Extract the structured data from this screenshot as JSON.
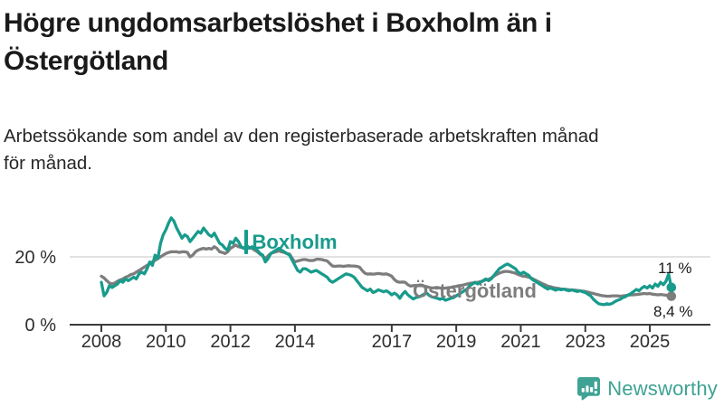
{
  "header": {
    "title_lines": [
      "Högre ungdomsarbetslöshet i Boxholm än i",
      "Östergötland"
    ],
    "subtitle_lines": [
      "Arbetssökande som andel av den registerbaserade arbetskraften månad",
      "för månad."
    ]
  },
  "footer": {
    "brand": "Newsworthy",
    "brand_color": "#3EA294",
    "logo_icon": "bar-chart-speech-bubble-icon"
  },
  "colors": {
    "boxholm_teal": "#189B8C",
    "ostergotland_gray": "#7D7D7D",
    "gridline": "#d9d9d9",
    "axis": "#3b3b3b",
    "title_text": "#1a1a1a"
  },
  "chart_data": {
    "type": "line",
    "title": "Högre ungdomsarbetslöshet i Boxholm än i Östergötland",
    "subtitle": "Arbetssökande som andel av den registerbaserade arbetskraften månad för månad.",
    "unit": "%",
    "x_start_year": 2008,
    "points_per_month": 1,
    "x_axis_ticks": [
      {
        "year": 2008,
        "label": "2008"
      },
      {
        "year": 2010,
        "label": "2010"
      },
      {
        "year": 2012,
        "label": "2012"
      },
      {
        "year": 2014,
        "label": "2014"
      },
      {
        "year": 2017,
        "label": "2017"
      },
      {
        "year": 2019,
        "label": "2019"
      },
      {
        "year": 2021,
        "label": "2021"
      },
      {
        "year": 2023,
        "label": "2023"
      },
      {
        "year": 2025,
        "label": "2025"
      }
    ],
    "y_axis_ticks": [
      {
        "value": 20,
        "label": "20 %"
      },
      {
        "value": 0,
        "label": "0 %"
      }
    ],
    "ylim": [
      0,
      35
    ],
    "grid": "single horizontal gridline at 20 %, baseline axis at 0 %",
    "legend_position": "inline labels on lines, value labels at line ends",
    "series": [
      {
        "name": "Boxholm",
        "color": "#189B8C",
        "end_label": "11 %",
        "end_value": 11,
        "values": [
          12.5,
          8.5,
          9.5,
          11.5,
          11.0,
          11.5,
          12.0,
          13.0,
          12.5,
          13.5,
          13.0,
          13.5,
          14.0,
          13.5,
          15.0,
          15.5,
          15.0,
          16.5,
          18.5,
          17.5,
          20.5,
          19.5,
          24.0,
          26.5,
          28.0,
          30.0,
          31.5,
          30.5,
          28.5,
          27.0,
          25.5,
          26.5,
          26.0,
          24.5,
          25.5,
          26.5,
          27.5,
          27.0,
          28.5,
          27.5,
          26.5,
          26.0,
          27.0,
          25.5,
          24.0,
          23.5,
          22.5,
          22.0,
          24.5,
          24.0,
          25.5,
          24.5,
          23.0,
          22.5,
          23.5,
          22.5,
          23.0,
          22.5,
          22.0,
          21.0,
          20.5,
          18.5,
          19.5,
          21.0,
          21.5,
          22.0,
          22.5,
          22.0,
          21.5,
          21.0,
          20.5,
          19.0,
          17.5,
          16.0,
          15.5,
          16.5,
          16.5,
          16.0,
          15.5,
          15.8,
          16.0,
          15.5,
          15.0,
          14.5,
          14.0,
          13.0,
          12.5,
          13.0,
          13.5,
          14.0,
          14.5,
          15.0,
          14.8,
          14.5,
          14.0,
          13.0,
          12.0,
          11.0,
          10.5,
          10.0,
          10.5,
          9.5,
          9.8,
          10.3,
          10.0,
          9.7,
          10.0,
          9.5,
          8.8,
          9.3,
          8.8,
          7.8,
          9.0,
          9.8,
          8.8,
          8.2,
          7.6,
          8.0,
          8.2,
          8.5,
          9.0,
          9.3,
          8.6,
          8.2,
          8.0,
          7.8,
          7.5,
          7.8,
          7.2,
          7.5,
          7.8,
          8.0,
          8.5,
          9.0,
          9.5,
          10.0,
          10.5,
          11.5,
          12.0,
          12.5,
          12.0,
          12.5,
          13.0,
          13.5,
          13.0,
          13.5,
          14.5,
          15.5,
          16.5,
          17.0,
          17.5,
          17.9,
          17.5,
          17.0,
          16.5,
          15.5,
          15.0,
          15.5,
          15.0,
          14.5,
          13.5,
          13.0,
          12.5,
          12.0,
          11.5,
          11.0,
          10.5,
          10.8,
          10.5,
          10.2,
          10.5,
          10.3,
          10.5,
          10.2,
          10.0,
          10.3,
          10.0,
          9.8,
          10.0,
          9.7,
          9.5,
          9.0,
          8.5,
          7.5,
          6.8,
          6.2,
          6.0,
          5.9,
          6.2,
          6.0,
          6.3,
          6.8,
          7.2,
          7.5,
          8.0,
          8.3,
          8.8,
          9.2,
          9.8,
          10.4,
          10.0,
          10.8,
          11.3,
          10.8,
          11.5,
          10.8,
          12.0,
          11.3,
          12.5,
          11.8,
          12.8,
          14.9,
          11.0
        ]
      },
      {
        "name": "Östergötland",
        "color": "#7D7D7D",
        "end_label": "8,4 %",
        "end_value": 8.4,
        "values": [
          14.3,
          13.8,
          13.0,
          12.3,
          12.0,
          12.3,
          12.8,
          13.2,
          13.5,
          14.0,
          14.3,
          14.8,
          15.0,
          15.5,
          16.0,
          16.5,
          17.0,
          17.5,
          18.0,
          18.5,
          19.0,
          19.5,
          20.0,
          20.5,
          21.0,
          21.3,
          21.5,
          21.5,
          21.5,
          21.3,
          21.5,
          21.5,
          21.3,
          20.0,
          20.5,
          21.5,
          22.0,
          22.3,
          22.5,
          22.3,
          22.5,
          22.3,
          23.0,
          22.5,
          21.5,
          21.3,
          21.0,
          21.5,
          22.5,
          23.0,
          23.5,
          23.0,
          22.8,
          22.5,
          23.0,
          22.8,
          22.5,
          22.0,
          21.5,
          20.8,
          20.3,
          19.5,
          20.3,
          21.0,
          21.3,
          21.5,
          21.8,
          21.5,
          21.3,
          21.0,
          20.8,
          19.5,
          18.5,
          18.8,
          19.0,
          19.2,
          19.2,
          19.0,
          18.9,
          19.0,
          19.3,
          19.3,
          19.2,
          19.0,
          18.8,
          18.0,
          17.3,
          17.2,
          17.3,
          17.3,
          17.2,
          17.3,
          17.4,
          17.3,
          17.3,
          17.2,
          17.0,
          16.0,
          15.2,
          14.9,
          15.0,
          14.9,
          15.0,
          15.1,
          15.0,
          14.9,
          15.0,
          14.7,
          14.3,
          13.3,
          12.7,
          12.5,
          12.6,
          12.5,
          11.8,
          11.4,
          11.5,
          11.6,
          11.5,
          11.5,
          11.4,
          11.2,
          11.0,
          10.8,
          10.9,
          11.0,
          10.8,
          10.7,
          10.8,
          10.9,
          11.0,
          11.2,
          11.3,
          11.5,
          11.6,
          11.8,
          12.0,
          12.2,
          12.3,
          12.4,
          12.5,
          12.7,
          12.9,
          13.2,
          13.4,
          13.8,
          14.3,
          14.8,
          15.2,
          15.5,
          15.7,
          15.7,
          15.6,
          15.4,
          15.2,
          14.8,
          14.5,
          14.3,
          14.2,
          14.0,
          13.7,
          13.3,
          12.9,
          12.5,
          12.1,
          11.8,
          11.4,
          11.2,
          11.0,
          10.8,
          10.7,
          10.5,
          10.5,
          10.4,
          10.3,
          10.2,
          10.2,
          10.1,
          10.0,
          9.9,
          9.8,
          9.6,
          9.4,
          9.2,
          9.0,
          8.8,
          8.6,
          8.5,
          8.4,
          8.4,
          8.5,
          8.5,
          8.5,
          8.4,
          8.5,
          8.6,
          8.7,
          8.8,
          8.8,
          8.9,
          9.0,
          9.1,
          9.2,
          9.1,
          9.2,
          9.0,
          8.9,
          8.8,
          8.9,
          8.8,
          8.7,
          8.6,
          8.4
        ]
      }
    ]
  }
}
